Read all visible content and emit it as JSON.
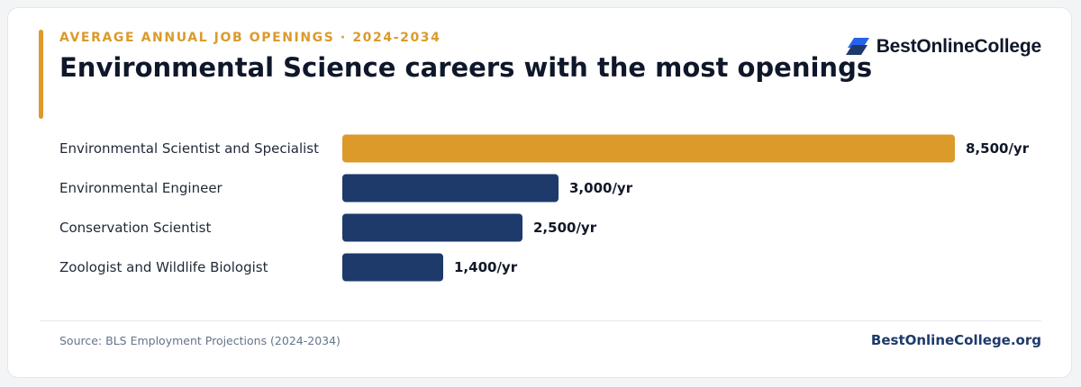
{
  "header": {
    "eyebrow": "AVERAGE ANNUAL JOB OPENINGS · 2024-2034",
    "title": "Environmental Science careers with the most openings"
  },
  "logo": {
    "text": "BestOnlineCollege",
    "icon": "stacked-parallelogram-logo-icon"
  },
  "chart_data": {
    "type": "bar",
    "orientation": "horizontal",
    "categories": [
      "Environmental Scientist and Specialist",
      "Environmental Engineer",
      "Conservation Scientist",
      "Zoologist and Wildlife Biologist"
    ],
    "values": [
      8500,
      3000,
      2500,
      1400
    ],
    "value_labels": [
      "8,500/yr",
      "3,000/yr",
      "2,500/yr",
      "1,400/yr"
    ],
    "xlim": [
      0,
      8500
    ],
    "grid": false,
    "legend": "none",
    "title": "",
    "xlabel": "",
    "ylabel": ""
  },
  "footer": {
    "source": "Source: BLS Employment Projections (2024-2034)",
    "brand": "BestOnlineCollege.org"
  },
  "colors": {
    "accent": "#db9a2a",
    "bar_highlight": "#db9a2a",
    "bar_default": "#1e3a6b",
    "brand_navy": "#1e3a6b",
    "logo_blue": "#2563eb",
    "text_dark": "#0f172a"
  }
}
